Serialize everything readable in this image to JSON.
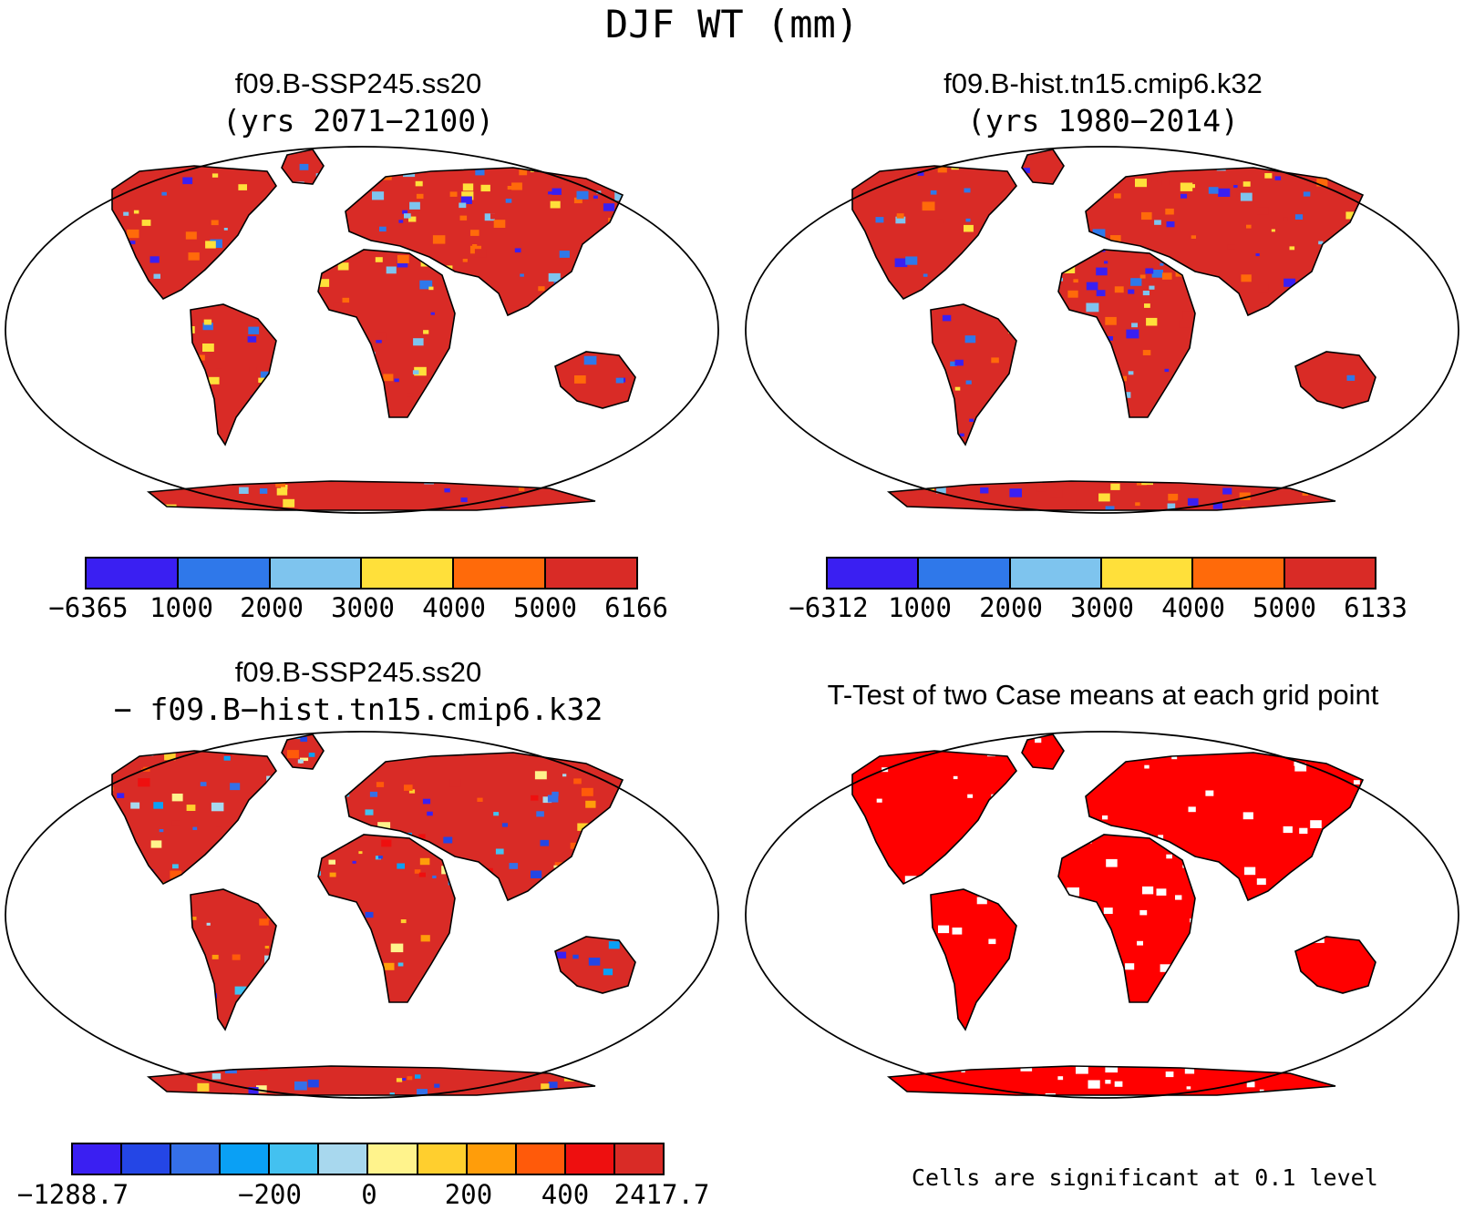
{
  "main_title": "DJF WT (mm)",
  "panels": [
    {
      "title": "f09.B-SSP245.ss20",
      "subtitle": "(yrs 2071−2100)",
      "palette": [
        "#3a1ff2",
        "#2f78ea",
        "#7ec4ee",
        "#ffe03a",
        "#ff6a0a",
        "#d92b26"
      ],
      "ticks": [
        "−6365",
        "1000",
        "2000",
        "3000",
        "4000",
        "5000",
        "6166"
      ]
    },
    {
      "title": "f09.B-hist.tn15.cmip6.k32",
      "subtitle": "(yrs 1980−2014)",
      "palette": [
        "#3a1ff2",
        "#2f78ea",
        "#7ec4ee",
        "#ffe03a",
        "#ff6a0a",
        "#d92b26"
      ],
      "ticks": [
        "−6312",
        "1000",
        "2000",
        "3000",
        "4000",
        "5000",
        "6133"
      ]
    },
    {
      "title": "f09.B-SSP245.ss20",
      "subtitle": "− f09.B−hist.tn15.cmip6.k32",
      "palette": [
        "#3a1ff2",
        "#2446e6",
        "#3570e8",
        "#0aa0f5",
        "#43c1f0",
        "#a8d8ee",
        "#fff38c",
        "#ffcf2e",
        "#ff9d0a",
        "#ff5a0a",
        "#ee0f0f",
        "#d92b26"
      ],
      "ticks": [
        "−1288.7",
        "−200",
        "0",
        "200",
        "400",
        "2417.7"
      ]
    },
    {
      "title": "T-Test of two Case means at each grid point",
      "note": "Cells are significant at 0.1 level",
      "sig_color": "#ff0000"
    }
  ]
}
